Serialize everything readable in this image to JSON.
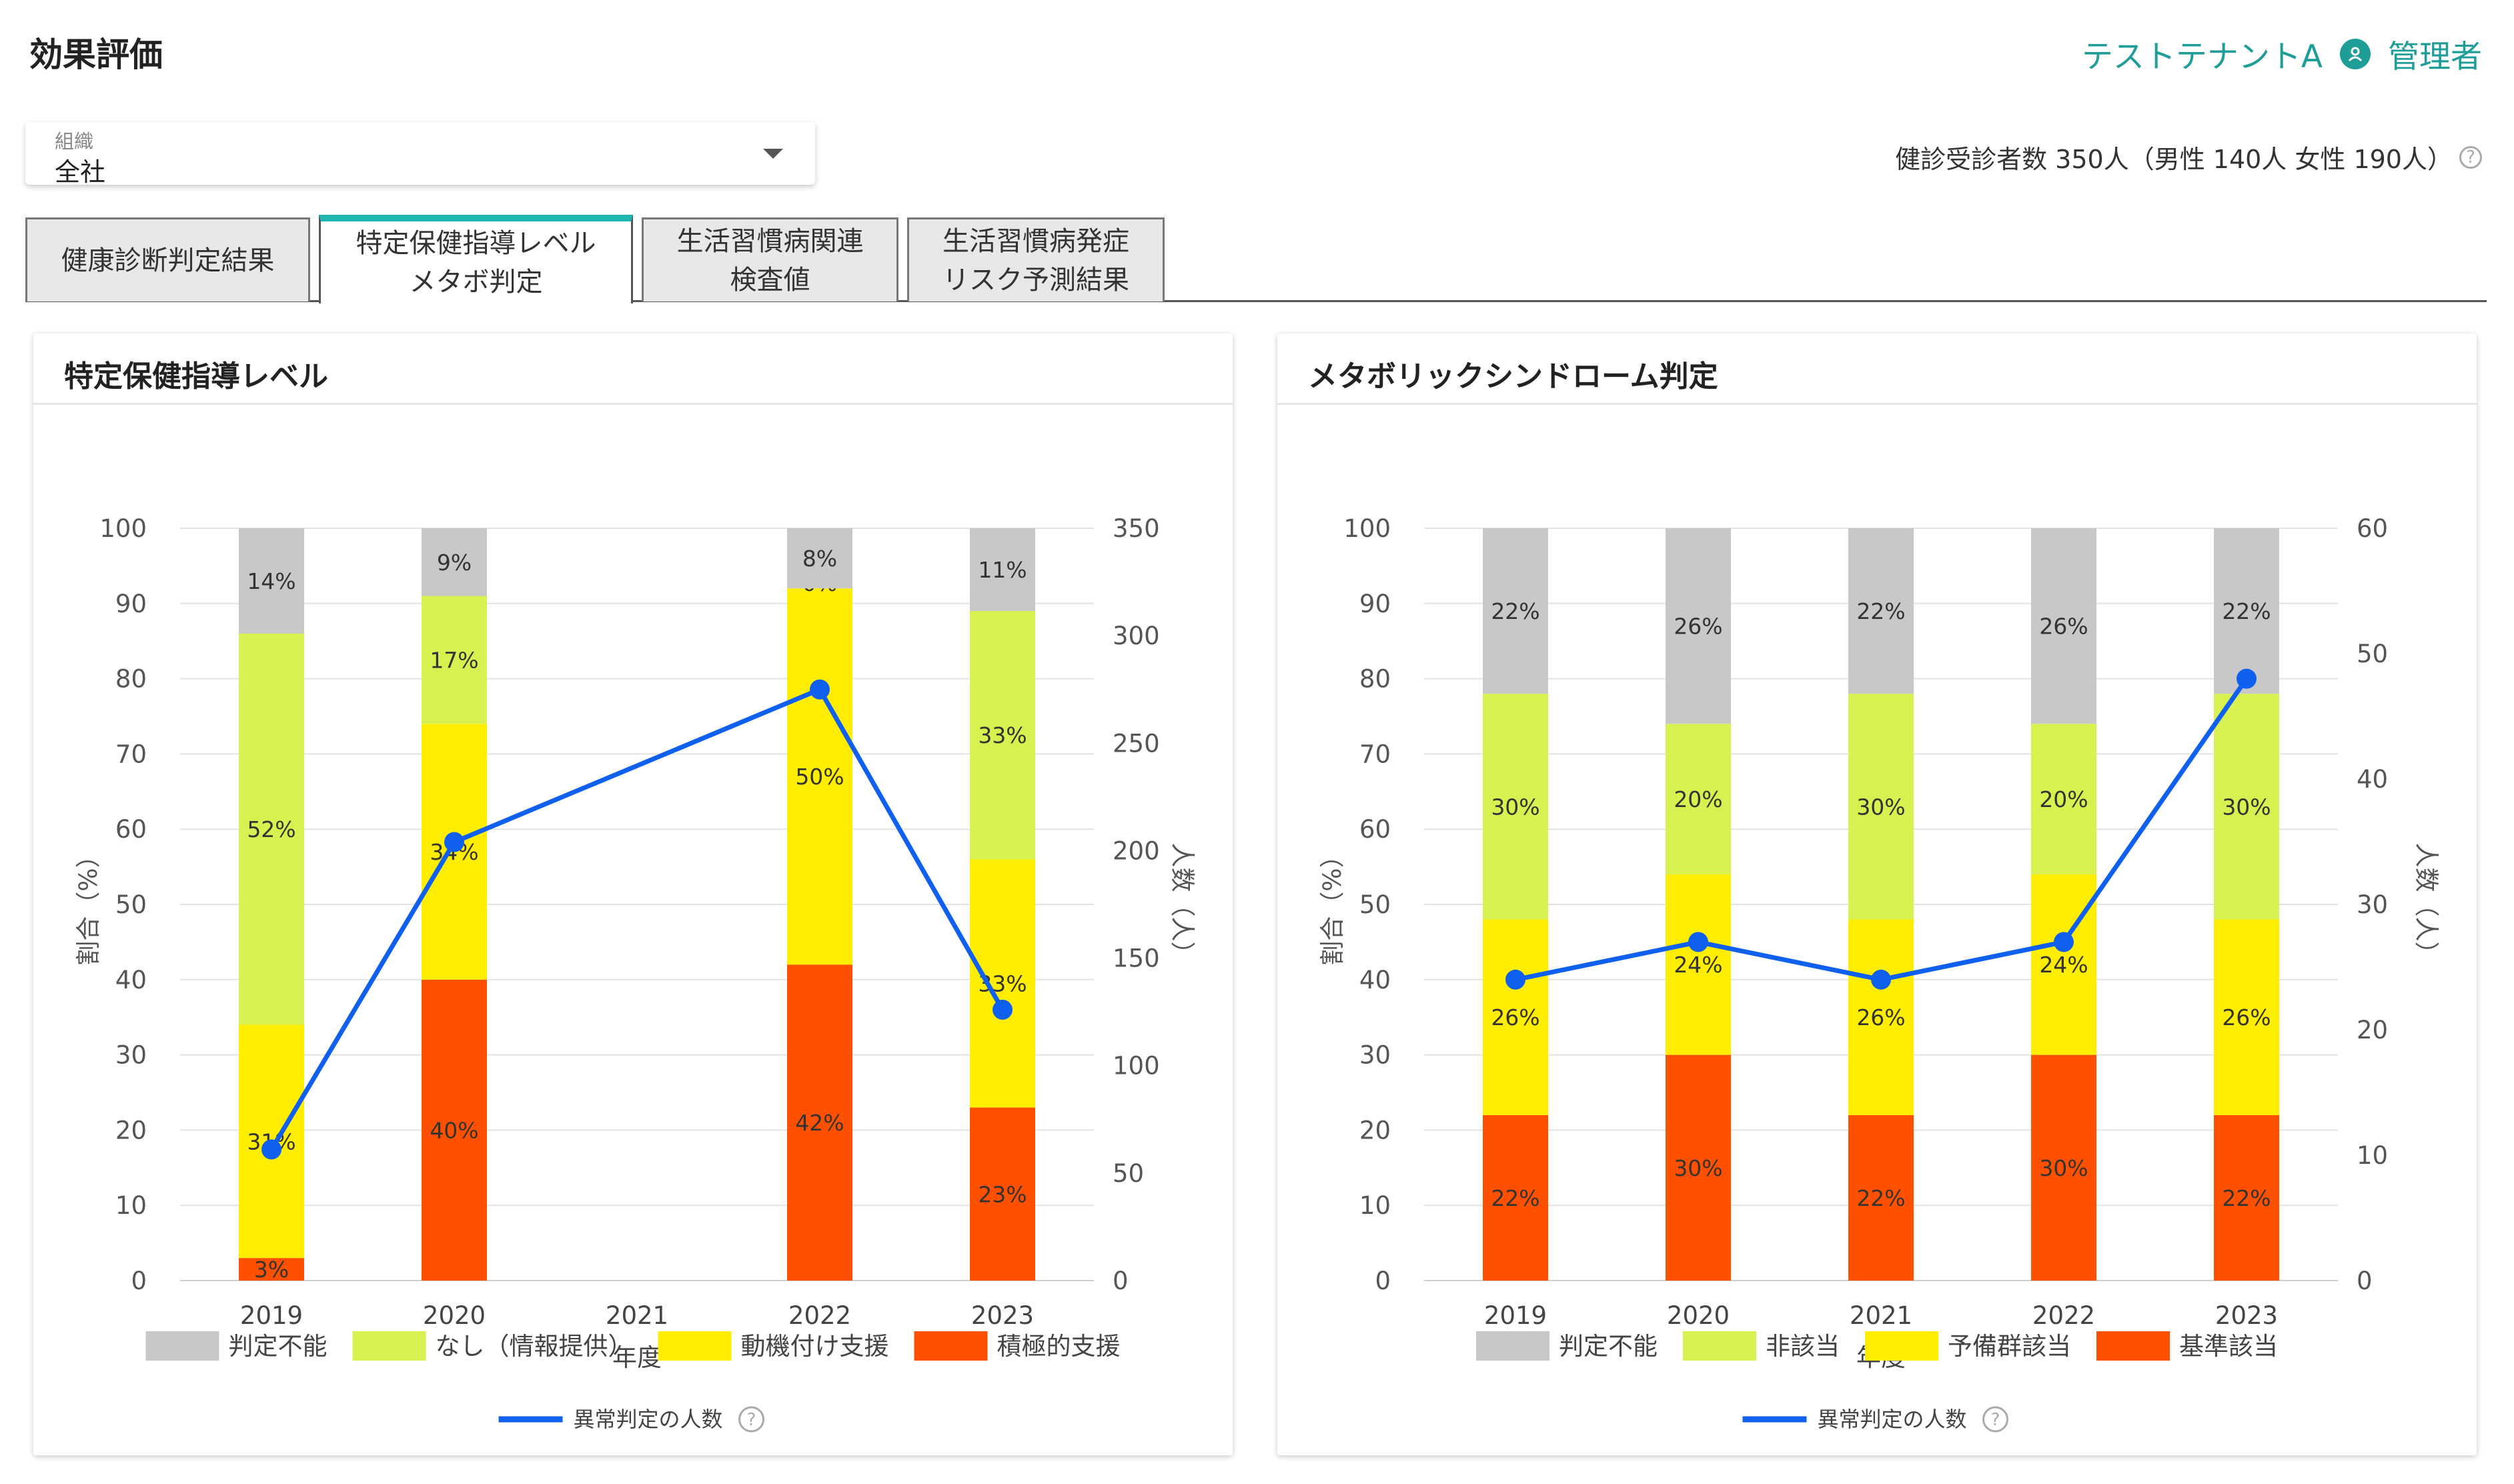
{
  "page_title": "効果評価",
  "tenant": "テストテナントA",
  "user": "管理者",
  "org_select": {
    "label": "組織",
    "value": "全社"
  },
  "examinees": "健診受診者数 350人（男性 140人 女性 190人）",
  "tabs": [
    {
      "label": "健康診断判定結果",
      "active": false
    },
    {
      "label": "特定保健指導レベル\nメタボ判定",
      "active": true
    },
    {
      "label": "生活習慣病関連\n検査値",
      "active": false
    },
    {
      "label": "生活習慣病発症\nリスク予測結果",
      "active": false
    }
  ],
  "line_legend": "異常判定の人数",
  "chart_data": [
    {
      "type": "bar",
      "title": "特定保健指導レベル",
      "categories": [
        "2019",
        "2020",
        "2021",
        "2022",
        "2023"
      ],
      "xlabel": "年度",
      "ylabel": "割合（%）",
      "y2label": "人数（人）",
      "ylim": [
        0,
        100
      ],
      "y2lim": [
        0,
        350
      ],
      "yticks": [
        0,
        10,
        20,
        30,
        40,
        50,
        60,
        70,
        80,
        90,
        100
      ],
      "y2ticks": [
        0,
        50,
        100,
        150,
        200,
        250,
        300,
        350
      ],
      "stacked": true,
      "series": [
        {
          "name": "積極的支援",
          "color": "#ff5000",
          "values": [
            3,
            40,
            null,
            42,
            23
          ]
        },
        {
          "name": "動機付け支援",
          "color": "#ffee00",
          "values": [
            31,
            34,
            null,
            50,
            33
          ]
        },
        {
          "name": "なし（情報提供）",
          "color": "#d8f050",
          "values": [
            52,
            17,
            null,
            0,
            33
          ]
        },
        {
          "name": "判定不能",
          "color": "#c8c8c8",
          "values": [
            14,
            9,
            null,
            8,
            11
          ]
        }
      ],
      "line": {
        "name": "異常判定の人数",
        "color": "#1060f0",
        "values": [
          61,
          204,
          null,
          275,
          126
        ]
      }
    },
    {
      "type": "bar",
      "title": "メタボリックシンドローム判定",
      "categories": [
        "2019",
        "2020",
        "2021",
        "2022",
        "2023"
      ],
      "xlabel": "年度",
      "ylabel": "割合（%）",
      "y2label": "人数（人）",
      "ylim": [
        0,
        100
      ],
      "y2lim": [
        0,
        60
      ],
      "yticks": [
        0,
        10,
        20,
        30,
        40,
        50,
        60,
        70,
        80,
        90,
        100
      ],
      "y2ticks": [
        0,
        10,
        20,
        30,
        40,
        50,
        60
      ],
      "stacked": true,
      "series": [
        {
          "name": "基準該当",
          "color": "#ff5000",
          "values": [
            22,
            30,
            22,
            30,
            22
          ]
        },
        {
          "name": "予備群該当",
          "color": "#ffee00",
          "values": [
            26,
            24,
            26,
            24,
            26
          ]
        },
        {
          "name": "非該当",
          "color": "#d8f050",
          "values": [
            30,
            20,
            30,
            20,
            30
          ]
        },
        {
          "name": "判定不能",
          "color": "#c8c8c8",
          "values": [
            22,
            26,
            22,
            26,
            22
          ]
        }
      ],
      "line": {
        "name": "異常判定の人数",
        "color": "#1060f0",
        "values": [
          24,
          27,
          24,
          27,
          48
        ]
      }
    }
  ]
}
